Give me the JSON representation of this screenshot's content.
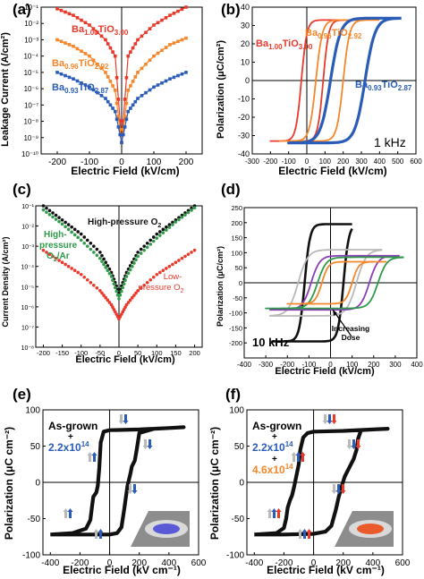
{
  "colors": {
    "red": "#e8392b",
    "orange": "#f5862a",
    "blue": "#2a5cb8",
    "green": "#2e9a4a",
    "black": "#111111",
    "gray": "#b9b9b9",
    "purple": "#8a3fb5",
    "pad_outer": "#aaaaaa",
    "pad_inner_e": "#5a5ad6",
    "pad_inner_f": "#ea5b2b"
  },
  "chart_data": [
    {
      "panel": "(a)",
      "type": "line",
      "xlabel": "Electric Field (kV/cm)",
      "ylabel": "Leakage Current (A/cm²)",
      "xlim": [
        -250,
        250
      ],
      "ylim_log10": [
        -10,
        -1
      ],
      "xticks": [
        "-200",
        "-100",
        "0",
        "100",
        "200"
      ],
      "yticks": [
        "10⁻¹⁰",
        "10⁻⁹",
        "10⁻⁸",
        "10⁻⁷",
        "10⁻⁶",
        "10⁻⁵",
        "10⁻⁴",
        "10⁻³",
        "10⁻²",
        "10⁻¹"
      ],
      "series": [
        {
          "name": "Ba1.00TiO3.00",
          "label_main": "Ba",
          "label_sub1": "1.00",
          "label_mid": "TiO",
          "label_sub2": "3.00",
          "color": "red",
          "x": [
            -200,
            -150,
            -100,
            -50,
            -20,
            0,
            20,
            50,
            100,
            150,
            200
          ],
          "y_log10": [
            -1.1,
            -1.5,
            -2.1,
            -3.0,
            -4.0,
            -9.3,
            -4.0,
            -3.0,
            -2.1,
            -1.5,
            -1.0
          ]
        },
        {
          "name": "Ba0.96TiO2.92",
          "label_main": "Ba",
          "label_sub1": "0.96",
          "label_mid": "TiO",
          "label_sub2": "2.92",
          "color": "orange",
          "x": [
            -200,
            -150,
            -100,
            -50,
            -20,
            0,
            20,
            50,
            100,
            150,
            200
          ],
          "y_log10": [
            -3.0,
            -3.4,
            -4.0,
            -5.0,
            -6.1,
            -9.3,
            -6.1,
            -5.0,
            -4.0,
            -3.3,
            -2.9
          ]
        },
        {
          "name": "Ba0.93TiO2.87",
          "label_main": "Ba",
          "label_sub1": "0.93",
          "label_mid": "TiO",
          "label_sub2": "2.87",
          "color": "blue",
          "x": [
            -200,
            -150,
            -100,
            -50,
            -20,
            0,
            20,
            50,
            100,
            150,
            200
          ],
          "y_log10": [
            -5.0,
            -5.4,
            -5.9,
            -6.6,
            -7.4,
            -9.3,
            -7.4,
            -6.6,
            -5.9,
            -5.4,
            -5.0
          ]
        }
      ]
    },
    {
      "panel": "(b)",
      "type": "line",
      "xlabel": "Electric Field (kV/cm)",
      "ylabel": "Polarization (μC/cm²)",
      "xlim": [
        -300,
        600
      ],
      "ylim": [
        -40,
        40
      ],
      "xticks": [
        "-300",
        "-200",
        "-100",
        "0",
        "100",
        "200",
        "300",
        "400",
        "500",
        "600"
      ],
      "yticks": [
        "-40",
        "-30",
        "-20",
        "-10",
        "0",
        "10",
        "20",
        "30",
        "40"
      ],
      "annotation": "1 kHz",
      "series": [
        {
          "name": "Ba1.00TiO3.00",
          "label_main": "Ba",
          "label_sub1": "1.00",
          "label_mid": "TiO",
          "label_sub2": "3.00",
          "color": "red",
          "Ec_low": -30,
          "Ec_high": 90,
          "Emin": -200,
          "Emax": 300,
          "Ps": 33,
          "sharp": 30
        },
        {
          "name": "Ba0.96TiO2.92",
          "label_main": "Ba",
          "label_sub1": "0.96",
          "label_mid": "TiO",
          "label_sub2": "2.92",
          "color": "orange",
          "Ec_low": 50,
          "Ec_high": 200,
          "Emin": -150,
          "Emax": 400,
          "Ps": 33,
          "sharp": 35
        },
        {
          "name": "Ba0.93TiO2.87",
          "label_main": "Ba",
          "label_sub1": "0.93",
          "label_mid": "TiO",
          "label_sub2": "2.87",
          "color": "blue",
          "Ec_low": 130,
          "Ec_high": 320,
          "Emin": -100,
          "Emax": 520,
          "Ps": 34,
          "sharp": 55
        }
      ]
    },
    {
      "panel": "(c)",
      "type": "scatter",
      "xlabel": "Electric Field (kV/cm)",
      "ylabel": "Current Density (A/cm²)",
      "xlim": [
        -220,
        220
      ],
      "ylim_log10": [
        -8,
        -1
      ],
      "xticks": [
        "-200",
        "-150",
        "-100",
        "-50",
        "0",
        "50",
        "100",
        "150",
        "200"
      ],
      "yticks": [
        "10⁻¹",
        "10⁻²",
        "10⁻³",
        "10⁻⁴",
        "10⁻⁵",
        "10⁻⁶",
        "10⁻⁷",
        "10⁻⁸"
      ],
      "series": [
        {
          "name": "High-pressure O2",
          "color": "black",
          "x": [
            -200,
            -150,
            -100,
            -50,
            -20,
            0,
            20,
            50,
            100,
            150,
            200
          ],
          "y_log10": [
            -1.0,
            -1.7,
            -2.4,
            -3.3,
            -4.3,
            -5.3,
            -4.3,
            -3.3,
            -2.4,
            -1.7,
            -1.0
          ]
        },
        {
          "name": "High-pressure O2/Ar",
          "color": "green",
          "x": [
            -200,
            -150,
            -100,
            -50,
            -20,
            0,
            20,
            50,
            100,
            150,
            200
          ],
          "y_log10": [
            -1.2,
            -1.9,
            -2.7,
            -3.6,
            -4.5,
            -5.6,
            -4.5,
            -3.5,
            -2.6,
            -1.8,
            -1.1
          ]
        },
        {
          "name": "Low-pressure O2",
          "color": "red",
          "x": [
            -200,
            -150,
            -100,
            -50,
            -20,
            0,
            20,
            50,
            100,
            150,
            200
          ],
          "y_log10": [
            -3.2,
            -3.8,
            -4.4,
            -5.2,
            -5.9,
            -6.6,
            -5.9,
            -5.2,
            -4.4,
            -3.8,
            -3.2
          ]
        }
      ],
      "labels": {
        "black": {
          "line1": "High-pressure O",
          "sub": "2"
        },
        "green": {
          "line1": "High-",
          "line2": "pressure",
          "line3": "O",
          "sub": "2",
          "tail": "/Ar"
        },
        "red": {
          "line1": "Low-",
          "line2": "pressure O",
          "sub": "2"
        }
      }
    },
    {
      "panel": "(d)",
      "type": "line",
      "xlabel": "Electric Field (kV/cm)",
      "ylabel": "Polarization (μC/cm²)",
      "xlim": [
        -400,
        400
      ],
      "ylim": [
        -250,
        250
      ],
      "xticks": [
        "-400",
        "-300",
        "-200",
        "-100",
        "0",
        "100",
        "200",
        "300",
        "400"
      ],
      "yticks": [
        "-200",
        "-150",
        "-100",
        "-50",
        "0",
        "50",
        "100",
        "150",
        "200",
        "250"
      ],
      "annotation": "10 kHz",
      "arrow_label": [
        "Increasing",
        "Dose"
      ],
      "series": [
        {
          "name": "black",
          "color": "black",
          "Ec_low": -120,
          "Ec_high": 60,
          "Emin": -270,
          "Emax": 100,
          "Ps": 195,
          "sharp": 25
        },
        {
          "name": "gray",
          "color": "gray",
          "Ec_low": -150,
          "Ec_high": 120,
          "Emin": -280,
          "Emax": 240,
          "Ps": 110,
          "sharp": 45
        },
        {
          "name": "purple",
          "color": "purple",
          "Ec_low": -90,
          "Ec_high": 180,
          "Emin": -280,
          "Emax": 320,
          "Ps": 90,
          "sharp": 40
        },
        {
          "name": "green",
          "color": "green",
          "Ec_low": -60,
          "Ec_high": 220,
          "Emin": -300,
          "Emax": 340,
          "Ps": 85,
          "sharp": 40
        },
        {
          "name": "orange",
          "color": "orange",
          "Ec_low": -40,
          "Ec_high": 100,
          "Emin": -200,
          "Emax": 260,
          "Ps": 70,
          "sharp": 30
        }
      ]
    },
    {
      "panel": "(e)",
      "type": "line",
      "xlabel": "Electric Field (kV cm⁻¹)",
      "ylabel": "Polarization (μC cm⁻²)",
      "xlim": [
        -450,
        600
      ],
      "ylim": [
        -100,
        100
      ],
      "xticks": [
        "-400",
        "-200",
        "0",
        "200",
        "400",
        "600"
      ],
      "yticks": [
        "-100",
        "-50",
        "0",
        "50",
        "100"
      ],
      "legend": {
        "l1": "As-grown",
        "l2": "+",
        "l3_main": "2.2x10",
        "l3_sup": "14"
      },
      "series": [
        {
          "name": "loop",
          "color": "black",
          "points": [
            [
              -400,
              -72
            ],
            [
              -250,
              -70
            ],
            [
              -160,
              -64
            ],
            [
              -130,
              -52
            ],
            [
              -120,
              -35
            ],
            [
              -110,
              -20
            ],
            [
              -90,
              -14
            ],
            [
              -80,
              -5
            ],
            [
              -70,
              20
            ],
            [
              -60,
              55
            ],
            [
              -40,
              70
            ],
            [
              0,
              72
            ],
            [
              200,
              73
            ],
            [
              400,
              75
            ],
            [
              500,
              76
            ],
            [
              400,
              75
            ],
            [
              300,
              74
            ],
            [
              200,
              68
            ],
            [
              190,
              55
            ],
            [
              180,
              42
            ],
            [
              170,
              30
            ],
            [
              150,
              22
            ],
            [
              140,
              12
            ],
            [
              120,
              -5
            ],
            [
              100,
              -35
            ],
            [
              80,
              -62
            ],
            [
              50,
              -70
            ],
            [
              0,
              -72
            ],
            [
              -200,
              -72
            ],
            [
              -400,
              -72
            ]
          ]
        }
      ]
    },
    {
      "panel": "(f)",
      "type": "line",
      "xlabel": "Electric Field (kV cm⁻¹)",
      "ylabel": "Polarization (μC cm⁻²)",
      "xlim": [
        -450,
        600
      ],
      "ylim": [
        -100,
        100
      ],
      "xticks": [
        "-400",
        "-200",
        "0",
        "200",
        "400",
        "600"
      ],
      "yticks": [
        "-100",
        "-50",
        "0",
        "50",
        "100"
      ],
      "legend": {
        "l1": "As-grown",
        "l2": "+",
        "l3_main": "2.2x10",
        "l3_sup": "14",
        "l4": "+",
        "l5_main": "4.6x10",
        "l5_sup": "14"
      },
      "series": [
        {
          "name": "loop",
          "color": "black",
          "points": [
            [
              -400,
              -72
            ],
            [
              -250,
              -70
            ],
            [
              -200,
              -63
            ],
            [
              -185,
              -50
            ],
            [
              -175,
              -35
            ],
            [
              -160,
              -25
            ],
            [
              -145,
              -18
            ],
            [
              -130,
              -5
            ],
            [
              -115,
              10
            ],
            [
              -100,
              25
            ],
            [
              -90,
              45
            ],
            [
              -70,
              62
            ],
            [
              -40,
              68
            ],
            [
              0,
              70
            ],
            [
              200,
              71
            ],
            [
              400,
              73
            ],
            [
              500,
              74
            ],
            [
              400,
              73
            ],
            [
              320,
              72
            ],
            [
              300,
              60
            ],
            [
              290,
              45
            ],
            [
              270,
              32
            ],
            [
              240,
              20
            ],
            [
              210,
              8
            ],
            [
              190,
              -5
            ],
            [
              170,
              -20
            ],
            [
              150,
              -38
            ],
            [
              120,
              -60
            ],
            [
              80,
              -68
            ],
            [
              0,
              -71
            ],
            [
              -200,
              -72
            ],
            [
              -400,
              -72
            ]
          ]
        }
      ]
    }
  ]
}
